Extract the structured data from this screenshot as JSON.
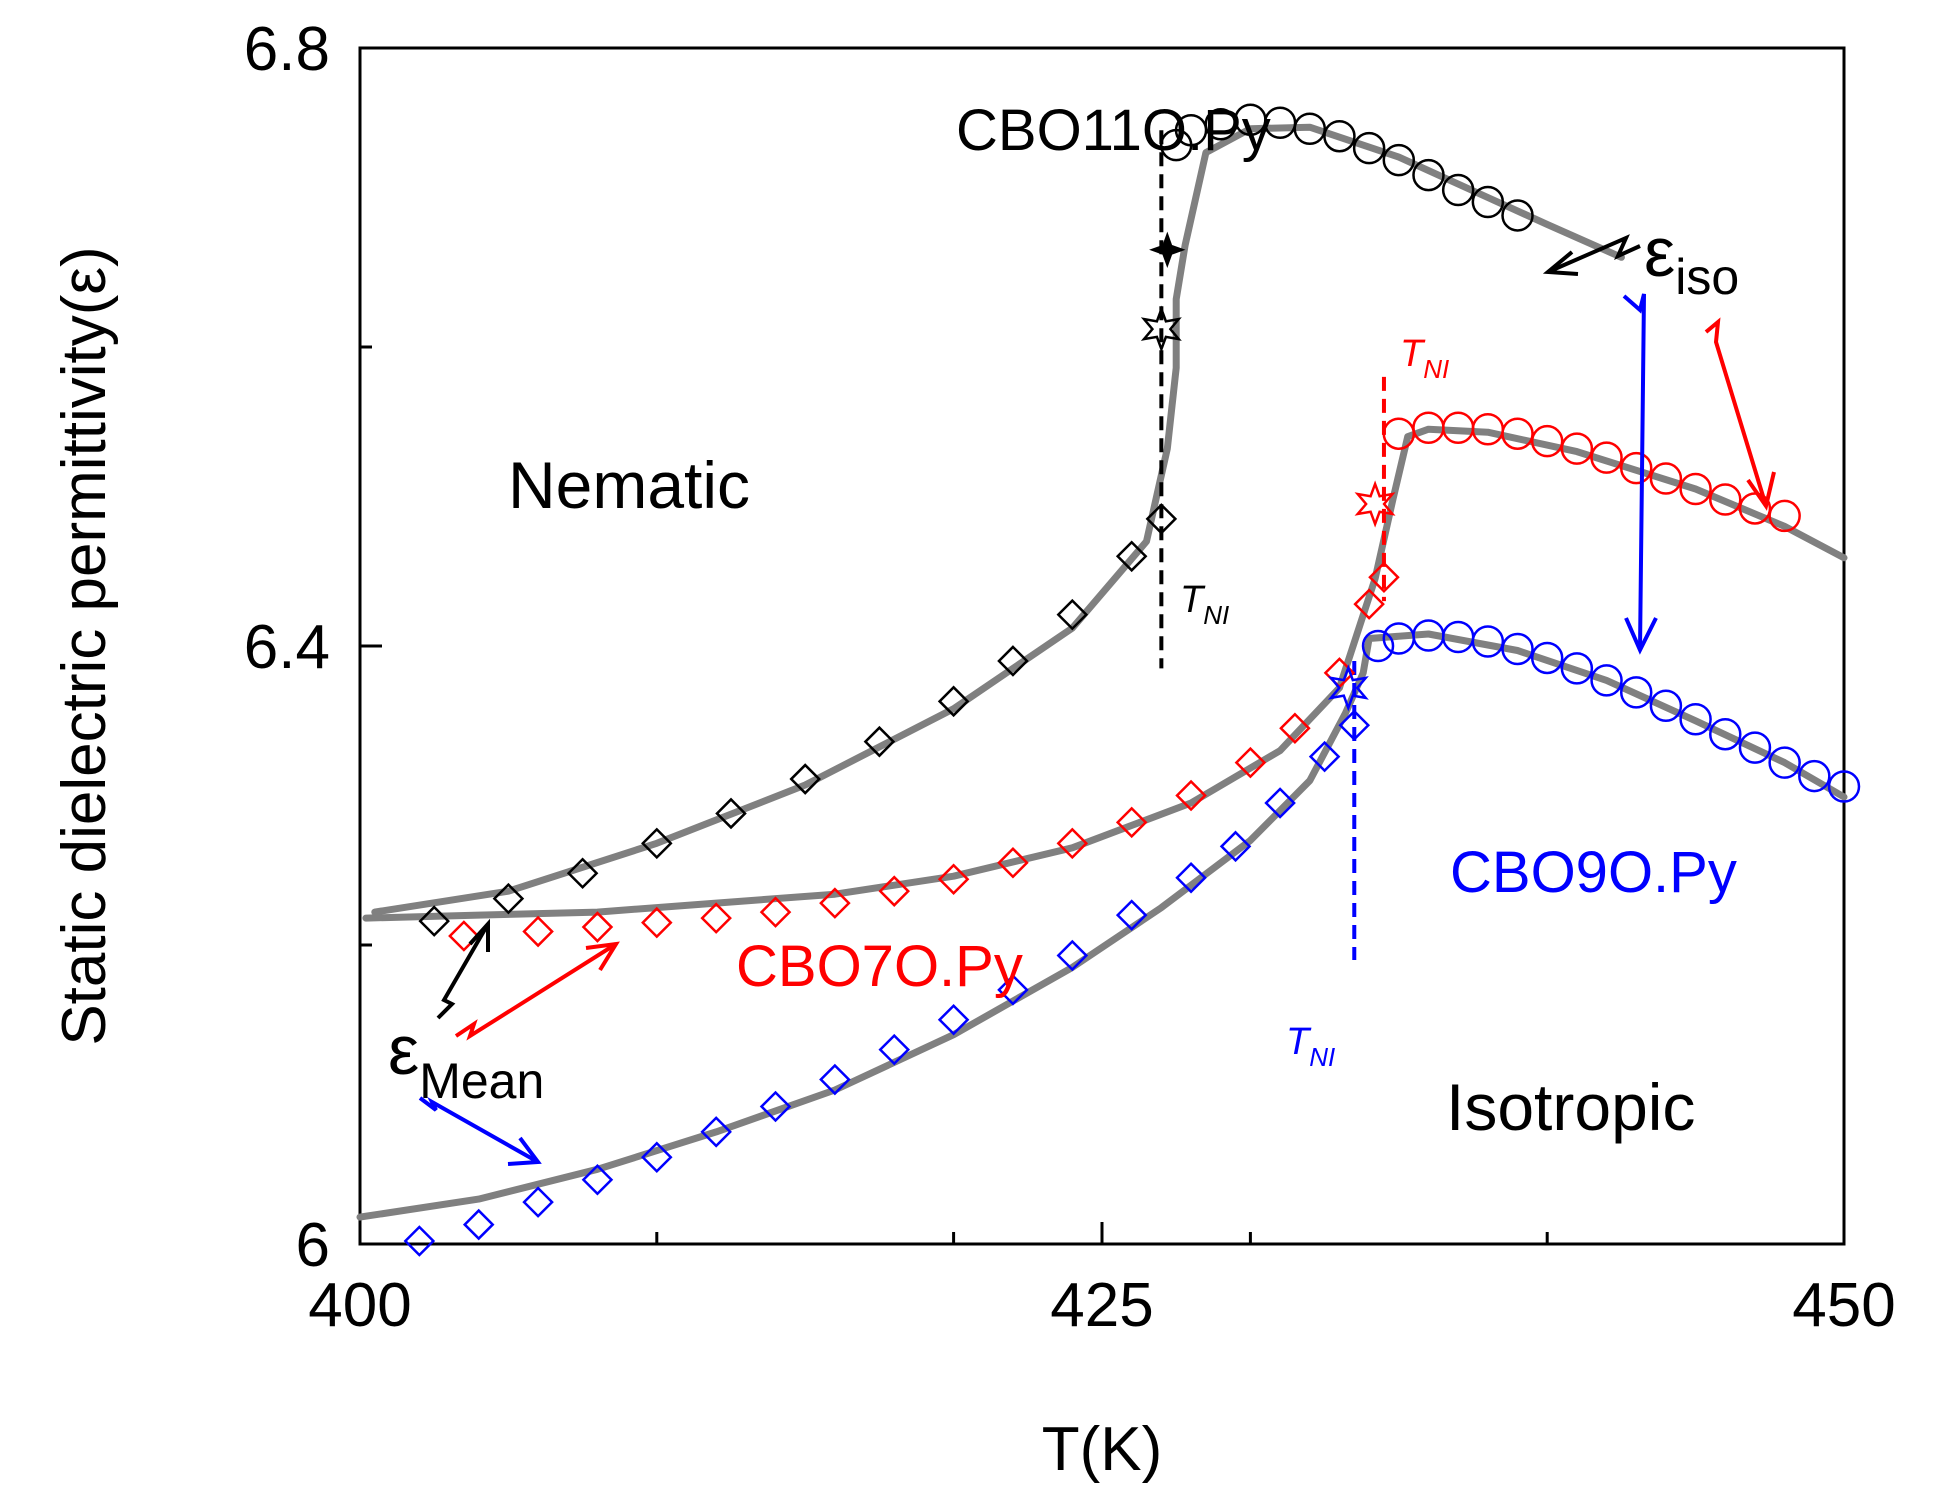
{
  "chart_data": {
    "type": "scatter",
    "title": "",
    "xlabel": "T(K)",
    "ylabel": "Static dielectric permittivity(ε)",
    "xlim": [
      400,
      450
    ],
    "ylim": [
      6.0,
      6.8
    ],
    "xticks": [
      400,
      425,
      450
    ],
    "xtick_labels": [
      "400",
      "425",
      "450"
    ],
    "yticks": [
      6.0,
      6.4,
      6.8
    ],
    "ytick_labels": [
      "6",
      "6.4",
      "6.8"
    ],
    "grid": false,
    "colors": {
      "black": "#000000",
      "red": "#ff0000",
      "blue": "#0000ff",
      "fit": "#808080"
    },
    "series": [
      {
        "name": "CBO11O.Py",
        "color": "#000000",
        "tni": 427,
        "nematic_points": [
          [
            402.5,
            6.216
          ],
          [
            405,
            6.231
          ],
          [
            407.5,
            6.248
          ],
          [
            410,
            6.268
          ],
          [
            412.5,
            6.288
          ],
          [
            415,
            6.311
          ],
          [
            417.5,
            6.336
          ],
          [
            420,
            6.363
          ],
          [
            422,
            6.39
          ],
          [
            424,
            6.421
          ],
          [
            426,
            6.46
          ],
          [
            427,
            6.485
          ]
        ],
        "isotropic_points": [
          [
            427.5,
            6.735
          ],
          [
            428,
            6.745
          ],
          [
            429,
            6.749
          ],
          [
            430,
            6.752
          ],
          [
            431,
            6.75
          ],
          [
            432,
            6.746
          ],
          [
            433,
            6.741
          ],
          [
            434,
            6.733
          ],
          [
            435,
            6.725
          ],
          [
            436,
            6.715
          ],
          [
            437,
            6.705
          ],
          [
            438,
            6.697
          ],
          [
            439,
            6.688
          ]
        ],
        "fit_curve": [
          [
            400.5,
            6.222
          ],
          [
            405,
            6.236
          ],
          [
            410,
            6.268
          ],
          [
            415,
            6.307
          ],
          [
            420,
            6.358
          ],
          [
            424,
            6.412
          ],
          [
            426.5,
            6.47
          ],
          [
            427.2,
            6.532
          ],
          [
            427.5,
            6.586
          ],
          [
            427.5,
            6.632
          ],
          [
            427.8,
            6.668
          ],
          [
            428.5,
            6.73
          ],
          [
            430,
            6.746
          ],
          [
            432,
            6.747
          ],
          [
            435,
            6.727
          ],
          [
            438,
            6.7
          ],
          [
            440,
            6.682
          ],
          [
            442.5,
            6.66
          ]
        ],
        "tni_markers": [
          [
            427,
            6.612
          ],
          [
            427.2,
            6.665
          ]
        ]
      },
      {
        "name": "CBO7O.Py",
        "color": "#ff0000",
        "tni": 434.5,
        "nematic_points": [
          [
            403.5,
            6.206
          ],
          [
            406,
            6.209
          ],
          [
            408,
            6.212
          ],
          [
            410,
            6.215
          ],
          [
            412,
            6.218
          ],
          [
            414,
            6.222
          ],
          [
            416,
            6.228
          ],
          [
            418,
            6.236
          ],
          [
            420,
            6.244
          ],
          [
            422,
            6.255
          ],
          [
            424,
            6.268
          ],
          [
            426,
            6.282
          ],
          [
            428,
            6.3
          ],
          [
            430,
            6.322
          ],
          [
            431.5,
            6.345
          ],
          [
            433,
            6.382
          ],
          [
            434,
            6.428
          ],
          [
            434.5,
            6.446
          ]
        ],
        "isotropic_points": [
          [
            435,
            6.542
          ],
          [
            436,
            6.546
          ],
          [
            437,
            6.546
          ],
          [
            438,
            6.545
          ],
          [
            439,
            6.542
          ],
          [
            440,
            6.537
          ],
          [
            441,
            6.532
          ],
          [
            442,
            6.526
          ],
          [
            443,
            6.519
          ],
          [
            444,
            6.512
          ],
          [
            445,
            6.505
          ],
          [
            446,
            6.498
          ],
          [
            447,
            6.492
          ],
          [
            448,
            6.487
          ]
        ],
        "fit_curve": [
          [
            400.2,
            6.218
          ],
          [
            404,
            6.22
          ],
          [
            408,
            6.222
          ],
          [
            412,
            6.228
          ],
          [
            416,
            6.234
          ],
          [
            420,
            6.246
          ],
          [
            424,
            6.265
          ],
          [
            428,
            6.295
          ],
          [
            431,
            6.33
          ],
          [
            433,
            6.372
          ],
          [
            434.2,
            6.445
          ],
          [
            434.8,
            6.498
          ],
          [
            435.3,
            6.54
          ],
          [
            436,
            6.545
          ],
          [
            438,
            6.543
          ],
          [
            441,
            6.53
          ],
          [
            445,
            6.505
          ],
          [
            448,
            6.48
          ],
          [
            450,
            6.459
          ]
        ],
        "tni_markers": [
          [
            434.2,
            6.495
          ]
        ]
      },
      {
        "name": "CBO9O.Py",
        "color": "#0000ff",
        "tni": 433.5,
        "nematic_points": [
          [
            402,
            6.002
          ],
          [
            404,
            6.013
          ],
          [
            406,
            6.028
          ],
          [
            408,
            6.043
          ],
          [
            410,
            6.058
          ],
          [
            412,
            6.075
          ],
          [
            414,
            6.092
          ],
          [
            416,
            6.11
          ],
          [
            418,
            6.13
          ],
          [
            420,
            6.15
          ],
          [
            422,
            6.17
          ],
          [
            424,
            6.193
          ],
          [
            426,
            6.22
          ],
          [
            428,
            6.245
          ],
          [
            429.5,
            6.266
          ],
          [
            431,
            6.295
          ],
          [
            432.5,
            6.326
          ],
          [
            433.5,
            6.347
          ]
        ],
        "isotropic_points": [
          [
            434.3,
            6.4
          ],
          [
            435,
            6.405
          ],
          [
            436,
            6.407
          ],
          [
            437,
            6.406
          ],
          [
            438,
            6.403
          ],
          [
            439,
            6.398
          ],
          [
            440,
            6.392
          ],
          [
            441,
            6.385
          ],
          [
            442,
            6.377
          ],
          [
            443,
            6.369
          ],
          [
            444,
            6.36
          ],
          [
            445,
            6.351
          ],
          [
            446,
            6.341
          ],
          [
            447,
            6.332
          ],
          [
            448,
            6.322
          ],
          [
            449,
            6.313
          ],
          [
            450,
            6.306
          ]
        ],
        "fit_curve": [
          [
            400,
            6.018
          ],
          [
            404,
            6.03
          ],
          [
            408,
            6.05
          ],
          [
            412,
            6.075
          ],
          [
            416,
            6.103
          ],
          [
            420,
            6.14
          ],
          [
            424,
            6.185
          ],
          [
            427,
            6.225
          ],
          [
            430,
            6.27
          ],
          [
            432,
            6.31
          ],
          [
            433.2,
            6.355
          ],
          [
            433.8,
            6.382
          ],
          [
            434,
            6.405
          ],
          [
            436,
            6.408
          ],
          [
            439,
            6.397
          ],
          [
            442,
            6.377
          ],
          [
            445,
            6.35
          ],
          [
            448,
            6.322
          ],
          [
            450,
            6.299
          ]
        ],
        "tni_markers": [
          [
            433.3,
            6.372
          ]
        ]
      }
    ],
    "annotations": {
      "curve_labels": [
        "CBO11O.Py",
        "CBO7O.Py",
        "CBO9O.Py"
      ],
      "phase_labels": [
        "Nematic",
        "Isotropic"
      ],
      "tni_label_main": "T",
      "tni_label_sub": "NI",
      "eps_iso_main": "ε",
      "eps_iso_sub": "iso",
      "eps_mean_main": "ε",
      "eps_mean_sub": "Mean"
    }
  }
}
